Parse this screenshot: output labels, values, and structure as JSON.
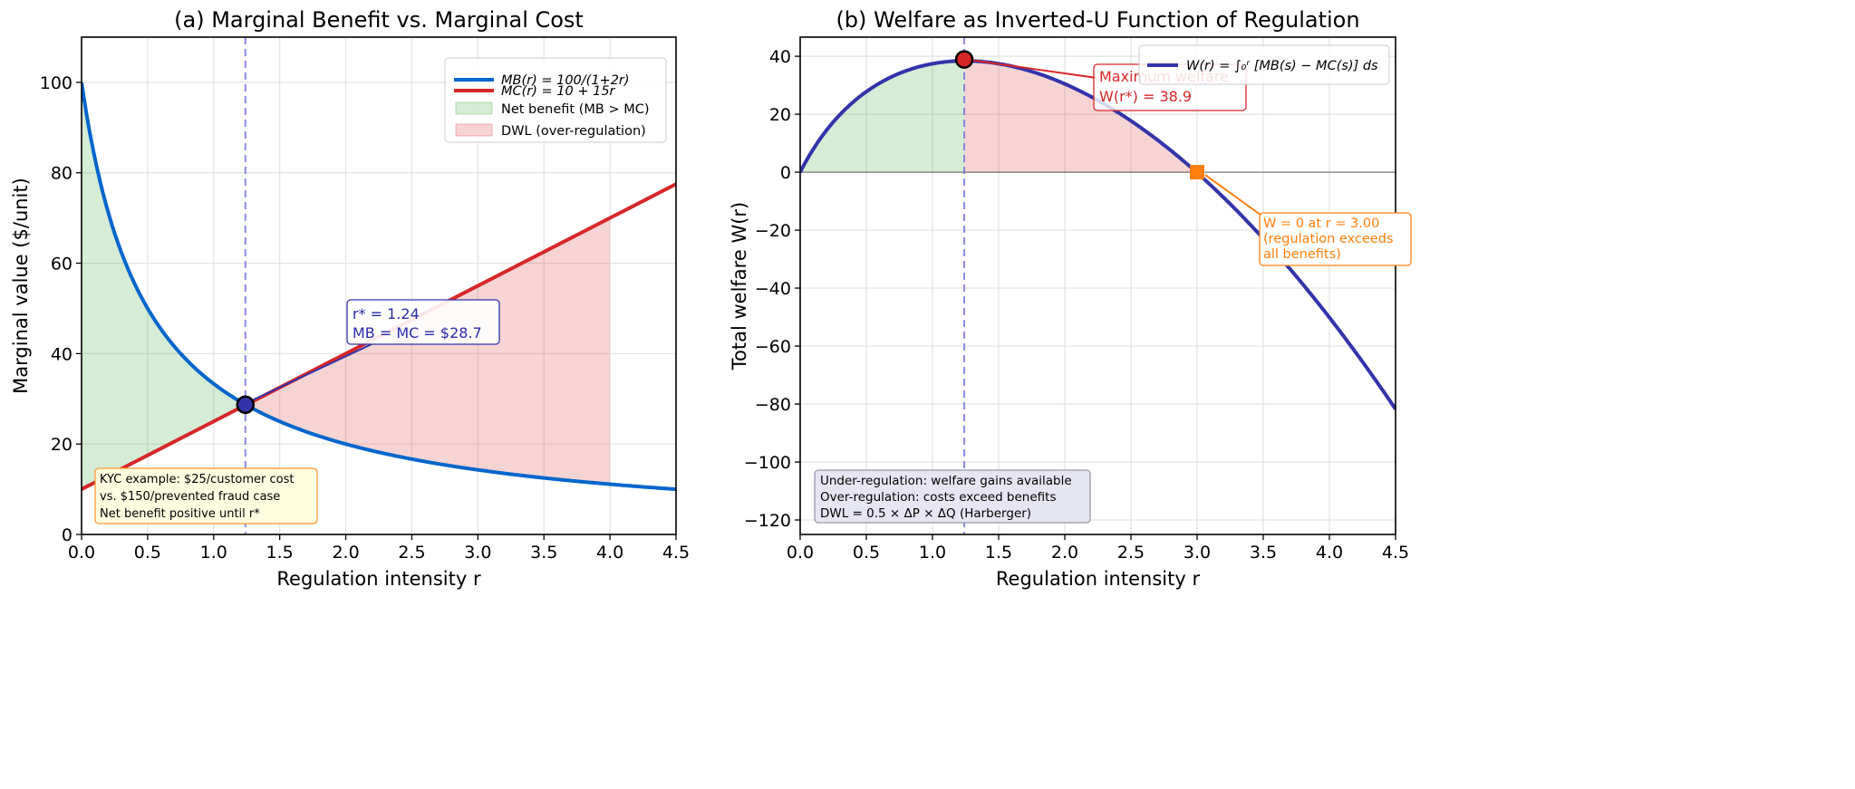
{
  "chart_data": [
    {
      "type": "line",
      "title": "(a) Marginal Benefit vs. Marginal Cost",
      "xlabel": "Regulation intensity r",
      "ylabel": "Marginal value ($/unit)",
      "xlim": [
        0,
        4.5
      ],
      "ylim": [
        0,
        110
      ],
      "xticks": [
        "0.0",
        "0.5",
        "1.0",
        "1.5",
        "2.0",
        "2.5",
        "3.0",
        "3.5",
        "4.0",
        "4.5"
      ],
      "yticks": [
        "0",
        "20",
        "40",
        "60",
        "80",
        "100"
      ],
      "grid": true,
      "legend_position": "top-right",
      "x": [
        0,
        0.25,
        0.5,
        0.75,
        1,
        1.25,
        1.5,
        1.75,
        2,
        2.25,
        2.5,
        2.75,
        3,
        3.25,
        3.5,
        3.75,
        4,
        4.25,
        4.5
      ],
      "series": [
        {
          "name": "MB(r) = 100/(1+2r)",
          "color": "#0066cc",
          "values": [
            100,
            66.67,
            50,
            40,
            33.33,
            28.57,
            25,
            22.22,
            20,
            18.18,
            16.67,
            15.38,
            14.29,
            13.33,
            12.5,
            11.76,
            11.11,
            10.53,
            10
          ]
        },
        {
          "name": "MC(r) = 10 + 15r",
          "color": "#d62728",
          "values": [
            10,
            13.75,
            17.5,
            21.25,
            25,
            28.75,
            32.5,
            36.25,
            40,
            43.75,
            47.5,
            51.25,
            55,
            58.75,
            62.5,
            66.25,
            70,
            73.75,
            77.5
          ]
        }
      ],
      "fills": [
        {
          "name": "Net benefit (MB > MC)",
          "color": "#2ca02c",
          "from": 0,
          "to": 1.24
        },
        {
          "name": "DWL (over-regulation)",
          "color": "#d62728",
          "from": 1.24,
          "to": 4.0
        }
      ],
      "optimum": {
        "r": 1.24,
        "value": 28.7,
        "color": "#3333aa"
      },
      "vline_r": 1.24,
      "annotations": {
        "optimum_line1": "r* = 1.24",
        "optimum_line2": "MB = MC = $28.7",
        "kyc_line1": "KYC example: $25/customer cost",
        "kyc_line2": "vs. $150/prevented fraud case",
        "kyc_line3": "Net benefit positive until r*"
      }
    },
    {
      "type": "line",
      "title": "(b) Welfare as Inverted-U Function of Regulation",
      "xlabel": "Regulation intensity r",
      "ylabel": "Total welfare W(r)",
      "xlim": [
        0,
        4.5
      ],
      "ylim": [
        -125,
        46.6
      ],
      "xticks": [
        "0.0",
        "0.5",
        "1.0",
        "1.5",
        "2.0",
        "2.5",
        "3.0",
        "3.5",
        "4.0",
        "4.5"
      ],
      "yticks": [
        "40",
        "20",
        "0",
        "−20",
        "−40",
        "−60",
        "−80",
        "−100",
        "−120"
      ],
      "grid": true,
      "legend_position": "top-right",
      "x": [
        0,
        0.25,
        0.5,
        0.75,
        1,
        1.25,
        1.5,
        1.75,
        2,
        2.25,
        2.5,
        2.75,
        3,
        3.25,
        3.5,
        3.75,
        4,
        4.25,
        4.5
      ],
      "series": [
        {
          "name": "W(r) = ∫₀ʳ [MB(s) − MC(s)] ds",
          "color": "#3333aa",
          "values": [
            0,
            17.3,
            27.78,
            34.09,
            37.43,
            38.42,
            37.44,
            34.73,
            30.47,
            24.77,
            17.72,
            9.37,
            -0.2,
            -10.97,
            -22.9,
            -35.97,
            -50.14,
            -65.41,
            -81.75
          ]
        }
      ],
      "fills": [
        {
          "color": "#2ca02c",
          "from": 0,
          "to": 1.24
        },
        {
          "color": "#d62728",
          "from": 1.24,
          "to": 3.0
        }
      ],
      "max_point": {
        "r": 1.24,
        "value": 38.9,
        "color": "#d62728"
      },
      "zero_point": {
        "r": 3.0,
        "value": 0,
        "color": "#ff7f0e"
      },
      "vline_r": 1.24,
      "annotations": {
        "max_line1": "Maximum welfare",
        "max_line2": "W(r*) = 38.9",
        "zero_line1": "W = 0 at r = 3.00",
        "zero_line2": "(regulation exceeds",
        "zero_line3": "all benefits)",
        "note_line1": "Under-regulation: welfare gains available",
        "note_line2": "Over-regulation: costs exceed benefits",
        "note_line3": "DWL = 0.5 × ΔP × ΔQ (Harberger)"
      }
    }
  ]
}
